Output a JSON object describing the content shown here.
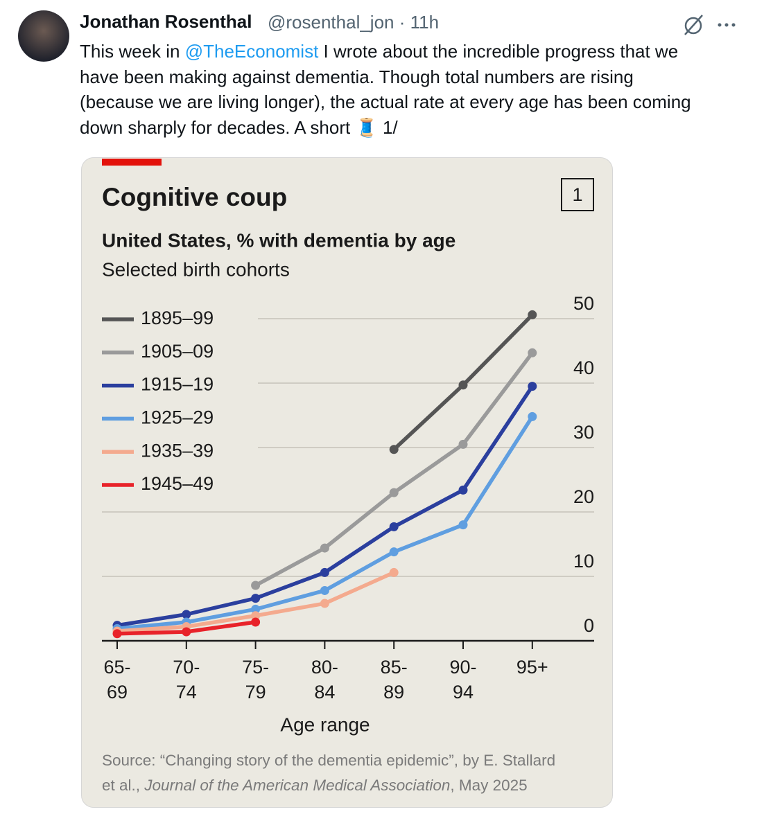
{
  "tweet": {
    "name": "Jonathan Rosenthal",
    "handle": "@rosenthal_jon",
    "time": "11h",
    "first_line": {
      "prefix": "This week in",
      "mention": "@TheEconomist",
      "suffix": "I wrote about the incredible progress that we"
    },
    "lines": [
      "have been making against dementia. Though total numbers are rising",
      "(because we are living longer), the actual rate at every age has been coming",
      "down sharply for decades. A short 🧵 1/"
    ]
  },
  "chart_data": {
    "type": "line",
    "title": "Cognitive coup",
    "badge": "1",
    "subtitle": "United States, % with dementia by age",
    "note": "Selected birth cohorts",
    "xlabel": "Age range",
    "source": {
      "prefix": "Source: “Changing story of the dementia epidemic”, by E. Stallard",
      "prefix2": "et al.,",
      "journal": "Journal of the American Medical Association",
      "suffix": ", May 2025"
    },
    "categories": [
      "65-69",
      "70-74",
      "75-79",
      "80-84",
      "85-89",
      "90-94",
      "95+"
    ],
    "series": [
      {
        "name": "1895–99",
        "color": "#555555",
        "values": [
          null,
          null,
          null,
          null,
          29.7,
          39.7,
          50.6
        ]
      },
      {
        "name": "1905–09",
        "color": "#9a9a9a",
        "values": [
          null,
          null,
          8.6,
          14.4,
          23,
          30.5,
          44.7
        ]
      },
      {
        "name": "1915–19",
        "color": "#2b3f9e",
        "values": [
          2.4,
          4.1,
          6.6,
          10.6,
          17.7,
          23.4,
          39.5
        ]
      },
      {
        "name": "1925–29",
        "color": "#5f9ee0",
        "values": [
          1.9,
          2.9,
          4.9,
          7.8,
          13.8,
          18,
          34.8
        ]
      },
      {
        "name": "1935–39",
        "color": "#f4aa8e",
        "values": [
          1.5,
          2.2,
          3.9,
          5.8,
          10.6,
          null,
          null
        ]
      },
      {
        "name": "1945–49",
        "color": "#e8232a",
        "values": [
          1.1,
          1.4,
          2.9,
          null,
          null,
          null,
          null
        ]
      }
    ],
    "ylim": [
      0,
      50
    ],
    "yticks": [
      0,
      10,
      20,
      30,
      40,
      50
    ],
    "grid": true,
    "legend": "top-left"
  }
}
